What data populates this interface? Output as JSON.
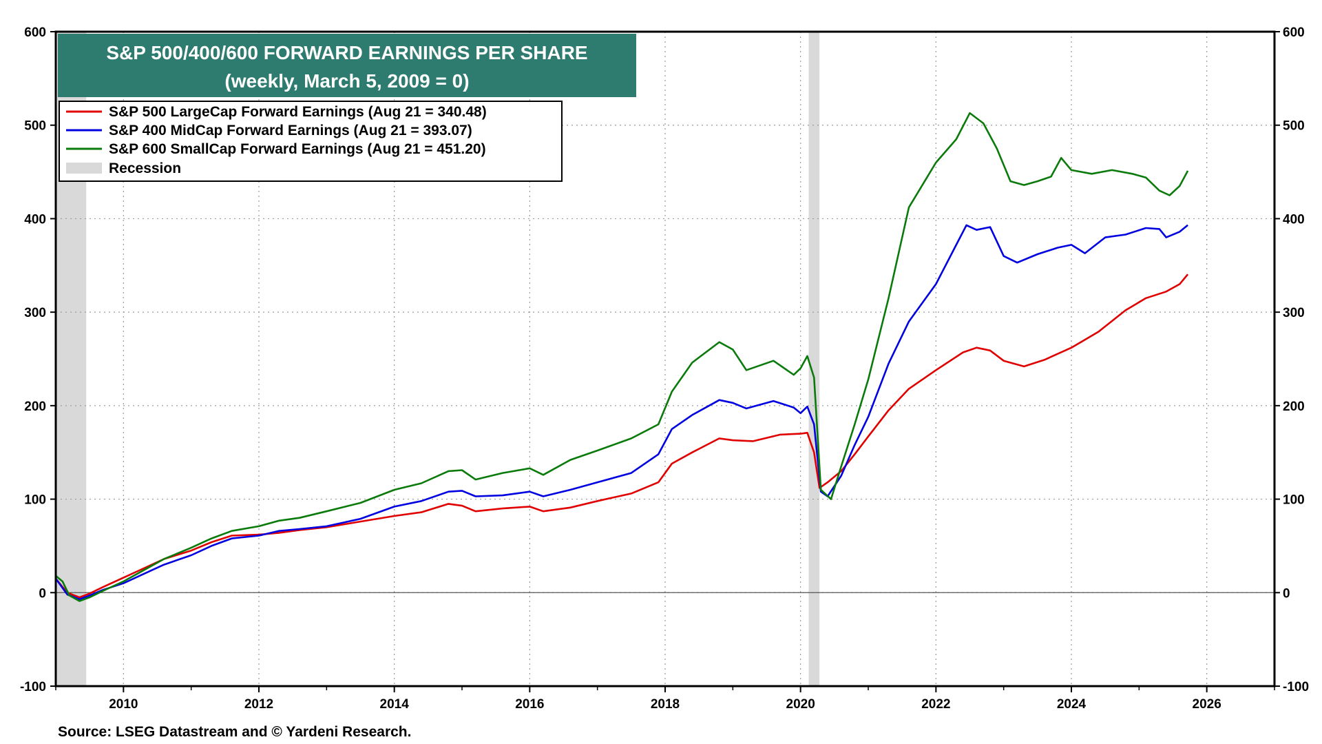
{
  "chart_data": {
    "type": "line",
    "title": "S&P 500/400/600 FORWARD EARNINGS PER SHARE",
    "subtitle": "(weekly, March 5, 2009 = 0)",
    "source": "Source: LSEG Datastream and © Yardeni Research.",
    "xlim": [
      2009.0,
      2027.0
    ],
    "ylim": [
      -100,
      600
    ],
    "y_ticks": [
      -100,
      0,
      100,
      200,
      300,
      400,
      500,
      600
    ],
    "y_tick_labels": [
      "-100",
      "0",
      "100",
      "200",
      "300",
      "400",
      "500",
      "600"
    ],
    "x_ticks": [
      2010,
      2012,
      2014,
      2016,
      2018,
      2020,
      2022,
      2024,
      2026
    ],
    "x_tick_labels": [
      "2010",
      "2012",
      "2014",
      "2016",
      "2018",
      "2020",
      "2022",
      "2024",
      "2026"
    ],
    "grid": true,
    "legend_position": "top-left",
    "recessions": [
      {
        "start": 2009.0,
        "end": 2009.45
      },
      {
        "start": 2020.12,
        "end": 2020.28
      }
    ],
    "series": [
      {
        "name": "S&P 500 LargeCap Forward Earnings (Aug 21 = 340.48)",
        "color": "#e00000",
        "points": [
          [
            2009.0,
            15
          ],
          [
            2009.17,
            0
          ],
          [
            2009.35,
            -5
          ],
          [
            2009.5,
            -1
          ],
          [
            2009.7,
            6
          ],
          [
            2010.0,
            16
          ],
          [
            2010.3,
            26
          ],
          [
            2010.6,
            36
          ],
          [
            2011.0,
            45
          ],
          [
            2011.3,
            54
          ],
          [
            2011.6,
            61
          ],
          [
            2012.0,
            62
          ],
          [
            2012.3,
            64
          ],
          [
            2012.6,
            67
          ],
          [
            2013.0,
            70
          ],
          [
            2013.5,
            76
          ],
          [
            2014.0,
            82
          ],
          [
            2014.4,
            86
          ],
          [
            2014.8,
            95
          ],
          [
            2015.0,
            93
          ],
          [
            2015.2,
            87
          ],
          [
            2015.6,
            90
          ],
          [
            2016.0,
            92
          ],
          [
            2016.2,
            87
          ],
          [
            2016.6,
            91
          ],
          [
            2017.0,
            98
          ],
          [
            2017.5,
            106
          ],
          [
            2017.9,
            118
          ],
          [
            2018.1,
            138
          ],
          [
            2018.4,
            150
          ],
          [
            2018.8,
            165
          ],
          [
            2019.0,
            163
          ],
          [
            2019.3,
            162
          ],
          [
            2019.7,
            169
          ],
          [
            2020.0,
            170
          ],
          [
            2020.1,
            171
          ],
          [
            2020.2,
            150
          ],
          [
            2020.28,
            112
          ],
          [
            2020.4,
            118
          ],
          [
            2020.6,
            130
          ],
          [
            2020.8,
            148
          ],
          [
            2021.0,
            167
          ],
          [
            2021.3,
            195
          ],
          [
            2021.6,
            218
          ],
          [
            2022.0,
            238
          ],
          [
            2022.4,
            257
          ],
          [
            2022.6,
            262
          ],
          [
            2022.8,
            259
          ],
          [
            2023.0,
            248
          ],
          [
            2023.3,
            242
          ],
          [
            2023.6,
            249
          ],
          [
            2024.0,
            262
          ],
          [
            2024.4,
            279
          ],
          [
            2024.8,
            302
          ],
          [
            2025.1,
            315
          ],
          [
            2025.4,
            322
          ],
          [
            2025.6,
            330
          ],
          [
            2025.72,
            340.48
          ]
        ]
      },
      {
        "name": "S&P 400 MidCap Forward Earnings (Aug 21 = 393.07)",
        "color": "#0000e0",
        "points": [
          [
            2009.0,
            15
          ],
          [
            2009.17,
            -2
          ],
          [
            2009.35,
            -7
          ],
          [
            2009.5,
            -3
          ],
          [
            2009.7,
            3
          ],
          [
            2010.0,
            10
          ],
          [
            2010.3,
            20
          ],
          [
            2010.6,
            30
          ],
          [
            2011.0,
            40
          ],
          [
            2011.3,
            50
          ],
          [
            2011.6,
            58
          ],
          [
            2012.0,
            61
          ],
          [
            2012.3,
            66
          ],
          [
            2012.6,
            68
          ],
          [
            2013.0,
            71
          ],
          [
            2013.5,
            79
          ],
          [
            2014.0,
            92
          ],
          [
            2014.4,
            98
          ],
          [
            2014.8,
            108
          ],
          [
            2015.0,
            109
          ],
          [
            2015.2,
            103
          ],
          [
            2015.6,
            104
          ],
          [
            2016.0,
            108
          ],
          [
            2016.2,
            103
          ],
          [
            2016.6,
            110
          ],
          [
            2017.0,
            118
          ],
          [
            2017.5,
            128
          ],
          [
            2017.9,
            148
          ],
          [
            2018.1,
            175
          ],
          [
            2018.4,
            190
          ],
          [
            2018.8,
            206
          ],
          [
            2019.0,
            203
          ],
          [
            2019.2,
            197
          ],
          [
            2019.6,
            205
          ],
          [
            2019.9,
            198
          ],
          [
            2020.0,
            192
          ],
          [
            2020.1,
            199
          ],
          [
            2020.2,
            180
          ],
          [
            2020.3,
            108
          ],
          [
            2020.4,
            103
          ],
          [
            2020.6,
            125
          ],
          [
            2020.8,
            158
          ],
          [
            2021.0,
            188
          ],
          [
            2021.3,
            245
          ],
          [
            2021.6,
            290
          ],
          [
            2022.0,
            330
          ],
          [
            2022.3,
            372
          ],
          [
            2022.45,
            393
          ],
          [
            2022.6,
            388
          ],
          [
            2022.8,
            391
          ],
          [
            2023.0,
            360
          ],
          [
            2023.2,
            353
          ],
          [
            2023.5,
            362
          ],
          [
            2023.8,
            369
          ],
          [
            2024.0,
            372
          ],
          [
            2024.2,
            363
          ],
          [
            2024.5,
            380
          ],
          [
            2024.8,
            383
          ],
          [
            2025.1,
            390
          ],
          [
            2025.3,
            389
          ],
          [
            2025.4,
            380
          ],
          [
            2025.6,
            386
          ],
          [
            2025.72,
            393.07
          ]
        ]
      },
      {
        "name": "S&P 600 SmallCap Forward Earnings (Aug 21 = 451.20)",
        "color": "#0a7a0a",
        "points": [
          [
            2009.0,
            18
          ],
          [
            2009.1,
            12
          ],
          [
            2009.2,
            -3
          ],
          [
            2009.35,
            -9
          ],
          [
            2009.5,
            -5
          ],
          [
            2009.7,
            2
          ],
          [
            2010.0,
            12
          ],
          [
            2010.3,
            24
          ],
          [
            2010.6,
            36
          ],
          [
            2011.0,
            48
          ],
          [
            2011.3,
            58
          ],
          [
            2011.6,
            66
          ],
          [
            2012.0,
            71
          ],
          [
            2012.3,
            77
          ],
          [
            2012.6,
            80
          ],
          [
            2013.0,
            87
          ],
          [
            2013.5,
            96
          ],
          [
            2014.0,
            110
          ],
          [
            2014.4,
            117
          ],
          [
            2014.8,
            130
          ],
          [
            2015.0,
            131
          ],
          [
            2015.2,
            121
          ],
          [
            2015.6,
            128
          ],
          [
            2016.0,
            133
          ],
          [
            2016.2,
            126
          ],
          [
            2016.6,
            142
          ],
          [
            2017.0,
            152
          ],
          [
            2017.5,
            165
          ],
          [
            2017.9,
            180
          ],
          [
            2018.1,
            215
          ],
          [
            2018.4,
            246
          ],
          [
            2018.8,
            268
          ],
          [
            2019.0,
            260
          ],
          [
            2019.2,
            238
          ],
          [
            2019.6,
            248
          ],
          [
            2019.9,
            233
          ],
          [
            2020.0,
            240
          ],
          [
            2020.1,
            253
          ],
          [
            2020.2,
            230
          ],
          [
            2020.3,
            110
          ],
          [
            2020.45,
            100
          ],
          [
            2020.6,
            135
          ],
          [
            2020.8,
            180
          ],
          [
            2021.0,
            228
          ],
          [
            2021.3,
            315
          ],
          [
            2021.6,
            412
          ],
          [
            2022.0,
            460
          ],
          [
            2022.3,
            485
          ],
          [
            2022.5,
            513
          ],
          [
            2022.7,
            502
          ],
          [
            2022.9,
            475
          ],
          [
            2023.1,
            440
          ],
          [
            2023.3,
            436
          ],
          [
            2023.5,
            440
          ],
          [
            2023.7,
            445
          ],
          [
            2023.85,
            465
          ],
          [
            2024.0,
            452
          ],
          [
            2024.3,
            448
          ],
          [
            2024.6,
            452
          ],
          [
            2024.9,
            448
          ],
          [
            2025.1,
            444
          ],
          [
            2025.3,
            430
          ],
          [
            2025.45,
            425
          ],
          [
            2025.6,
            435
          ],
          [
            2025.72,
            451.2
          ]
        ]
      }
    ],
    "legend_recession_label": "Recession"
  }
}
